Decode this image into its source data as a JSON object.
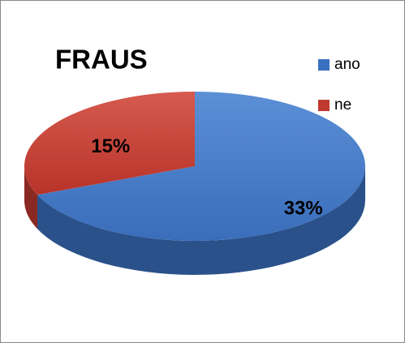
{
  "chart_data": {
    "type": "pie",
    "title": "FRAUS",
    "categories": [
      "ano",
      "ne"
    ],
    "values": [
      33,
      15
    ],
    "value_labels": [
      "33%",
      "15%"
    ],
    "colors": [
      "#3a70c0",
      "#c0392f"
    ],
    "legend": "right"
  }
}
